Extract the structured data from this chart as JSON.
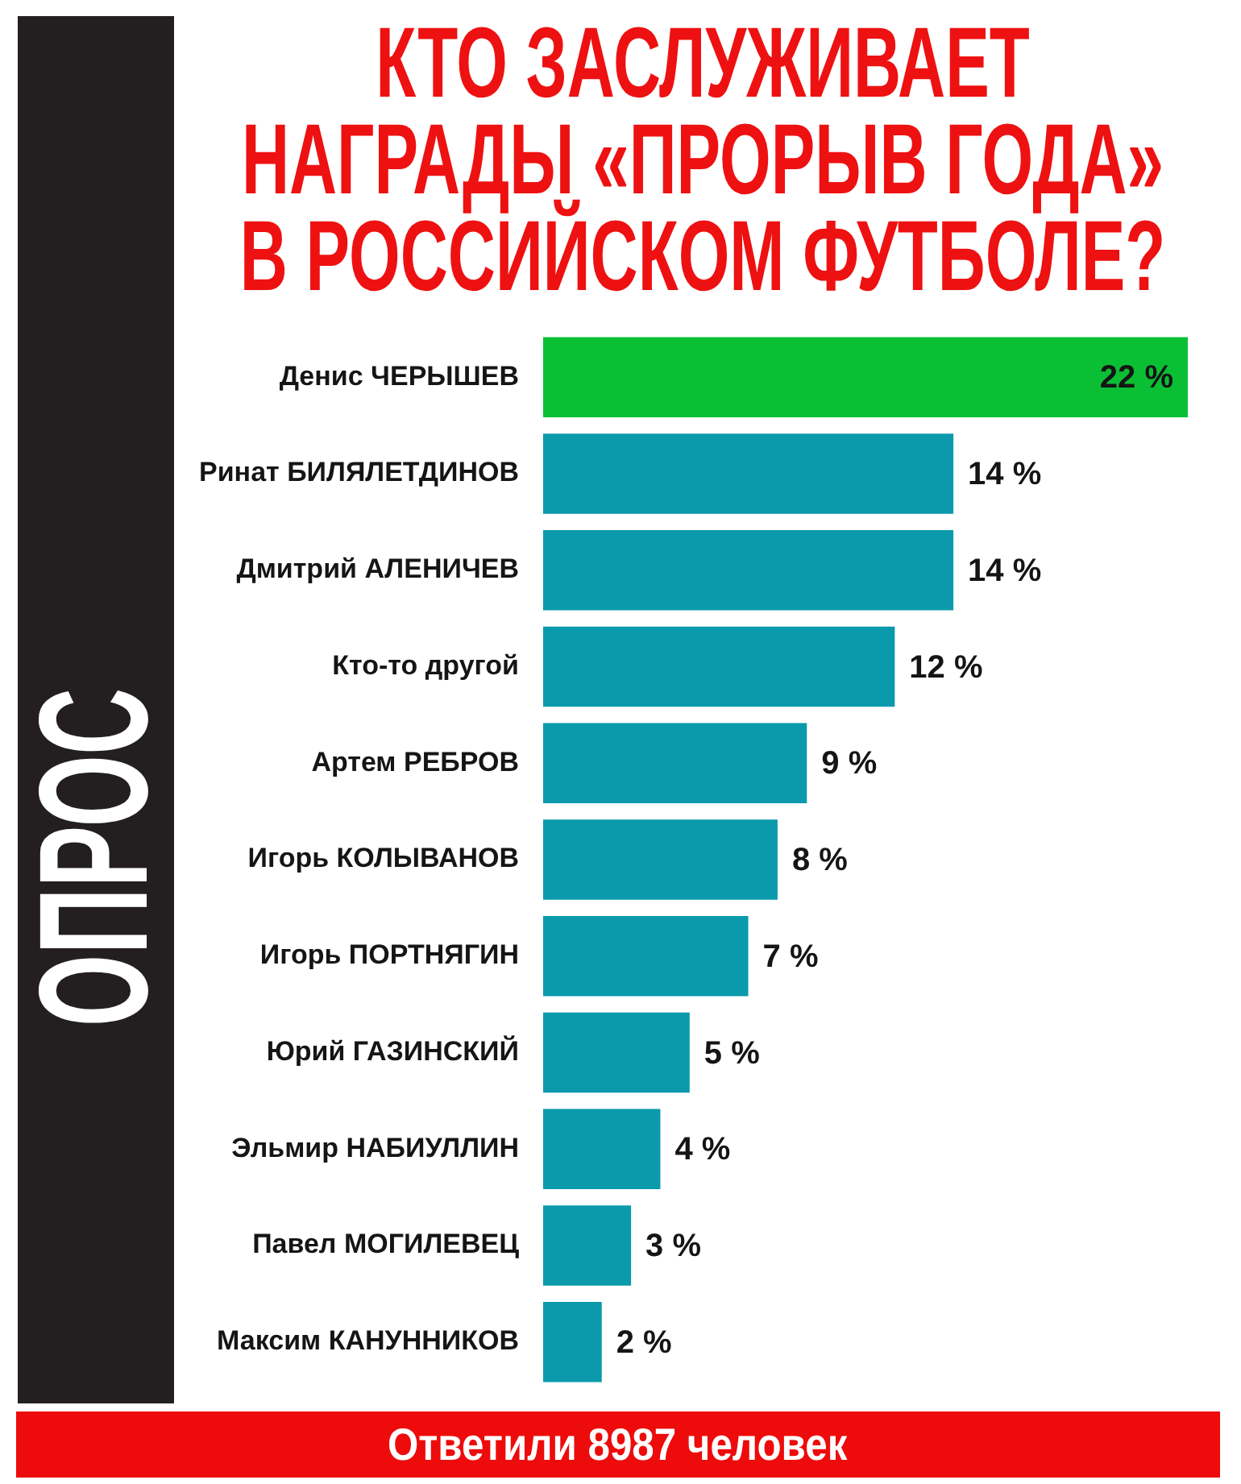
{
  "chart_data": {
    "type": "bar",
    "orientation": "horizontal",
    "title": "КТО ЗАСЛУЖИВАЕТ НАГРАДЫ «ПРОРЫВ ГОДА» В РОССИЙСКОМ ФУТБОЛЕ?",
    "categories": [
      "Денис ЧЕРЫШЕВ",
      "Ринат БИЛЯЛЕТДИНОВ",
      "Дмитрий АЛЕНИЧЕВ",
      "Кто-то другой",
      "Артем РЕБРОВ",
      "Игорь КОЛЫВАНОВ",
      "Игорь ПОРТНЯГИН",
      "Юрий ГАЗИНСКИЙ",
      "Эльмир НАБИУЛЛИН",
      "Павел МОГИЛЕВЕЦ",
      "Максим КАНУННИКОВ"
    ],
    "values": [
      22,
      14,
      14,
      12,
      9,
      8,
      7,
      5,
      4,
      3,
      2
    ],
    "colors": [
      "#0bbf34",
      "#0a9aac",
      "#0a9aac",
      "#0a9aac",
      "#0a9aac",
      "#0a9aac",
      "#0a9aac",
      "#0a9aac",
      "#0a9aac",
      "#0a9aac",
      "#0a9aac"
    ],
    "value_labels": [
      "22 %",
      "14 %",
      "14 %",
      "12 %",
      "9 %",
      "8 %",
      "7 %",
      "5 %",
      "4 %",
      "3 %",
      "2 %"
    ],
    "annotations": [
      "ОПРОС",
      "Ответили 8987 человек"
    ]
  }
}
